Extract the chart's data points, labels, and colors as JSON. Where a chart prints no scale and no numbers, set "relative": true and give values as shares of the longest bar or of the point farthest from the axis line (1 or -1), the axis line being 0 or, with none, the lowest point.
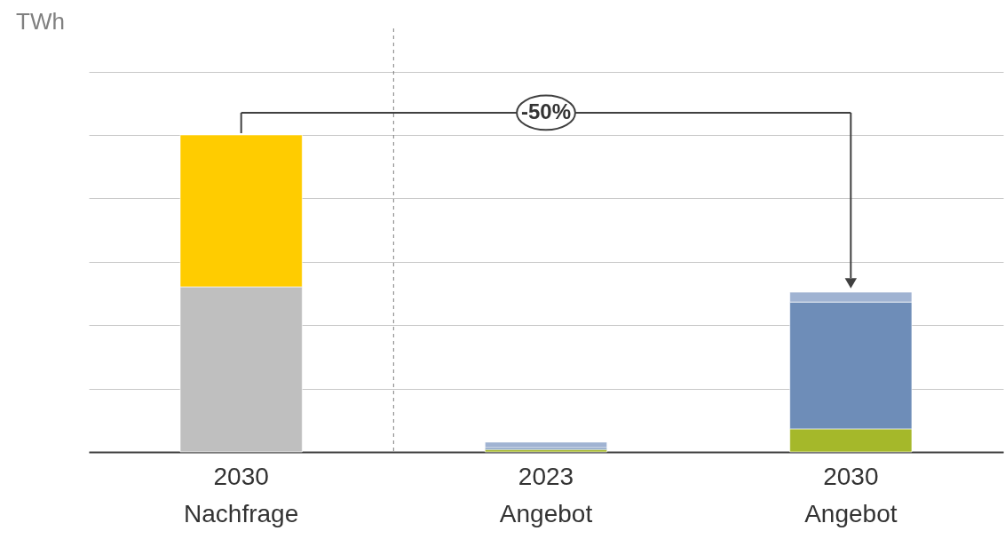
{
  "chart_data": {
    "type": "bar",
    "stacked": true,
    "relative": true,
    "categories": [
      "2030\nNachfrage",
      "2023\nAngebot",
      "2030\nAngebot"
    ],
    "series": [
      {
        "color": "#bfbfbf",
        "values": [
          0.521,
          null,
          null
        ]
      },
      {
        "color": "#ffcc00",
        "values": [
          0.479,
          null,
          null
        ]
      },
      {
        "color": "#a5b82a",
        "values": [
          null,
          0.008,
          0.073
        ]
      },
      {
        "color": "#6e8db8",
        "values": [
          null,
          0.006,
          0.4
        ]
      },
      {
        "color": "#a0b3d2",
        "values": [
          null,
          0.017,
          0.031
        ]
      }
    ],
    "annotations": [
      "TWh",
      "-50%"
    ],
    "grid": "y",
    "legend": false,
    "tick_labels": "x"
  }
}
